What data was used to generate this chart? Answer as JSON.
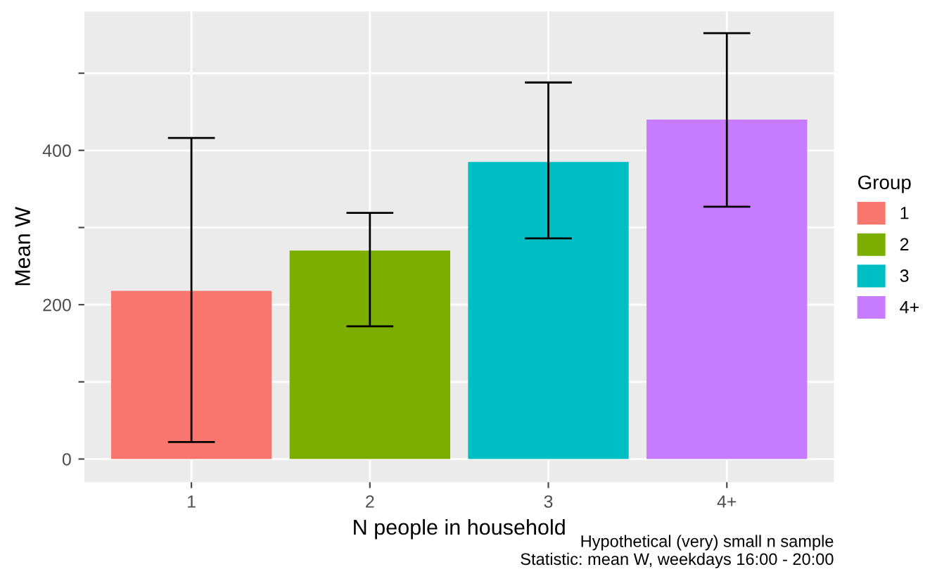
{
  "chart_data": {
    "type": "bar",
    "xlabel": "N people in household",
    "ylabel": "Mean W",
    "legend_title": "Group",
    "categories": [
      "1",
      "2",
      "3",
      "4+"
    ],
    "series": [
      {
        "name": "1",
        "color": "#f8766d",
        "values": [
          218,
          null,
          null,
          null
        ],
        "errors": [
          [
            22,
            416
          ],
          null,
          null,
          null
        ]
      },
      {
        "name": "2",
        "color": "#7cae00",
        "values": [
          null,
          270,
          null,
          null
        ],
        "errors": [
          null,
          [
            172,
            319
          ],
          null,
          null
        ]
      },
      {
        "name": "3",
        "color": "#00bfc4",
        "values": [
          null,
          null,
          385,
          null
        ],
        "errors": [
          null,
          null,
          [
            286,
            488
          ],
          null
        ]
      },
      {
        "name": "4+",
        "color": "#c77cff",
        "values": [
          null,
          null,
          null,
          440
        ],
        "errors": [
          null,
          null,
          null,
          [
            327,
            552
          ]
        ]
      }
    ],
    "ylim": [
      -30,
      580
    ],
    "yticks": [
      0,
      {
        "value": 100,
        "label": null
      },
      200,
      {
        "value": 300,
        "label": null
      },
      400,
      {
        "value": 500,
        "label": null
      }
    ],
    "grid": true,
    "legend": "right",
    "annotations": [
      "Hypothetical (very) small n sample\nStatistic: mean W, weekdays 16:00 - 20:00"
    ]
  }
}
